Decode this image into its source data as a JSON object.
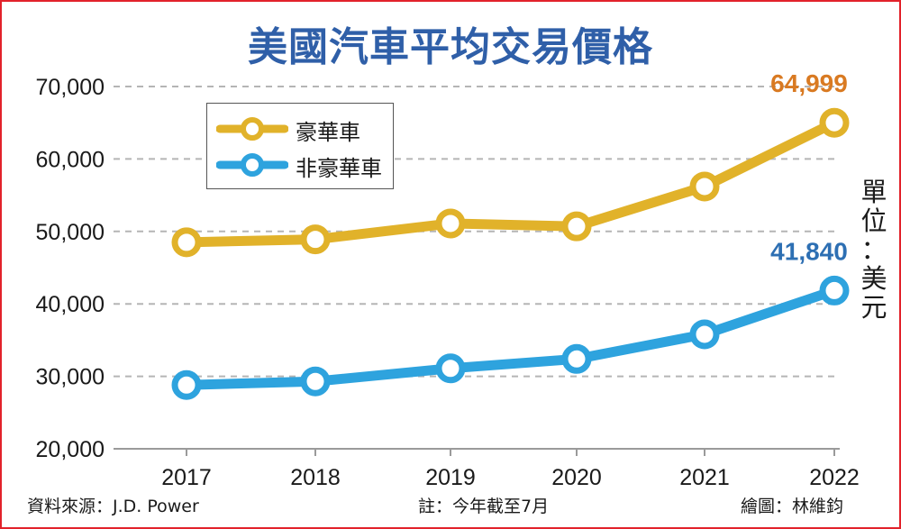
{
  "title": "美國汽車平均交易價格",
  "unit": "單位：美元",
  "source": "資料來源：J.D. Power",
  "note": "註：今年截至7月",
  "credit": "繪圖：林維鈞",
  "colors": {
    "luxury": "#e1b22a",
    "non_luxury": "#2ea3de",
    "luxury_label": "#d97a22",
    "non_luxury_label": "#2d6fb3",
    "title": "#2f5fa8",
    "frame": "#e2222b"
  },
  "chart_data": {
    "type": "line",
    "title": "美國汽車平均交易價格",
    "x": [
      "2017",
      "2018",
      "2019",
      "2020",
      "2021",
      "2022"
    ],
    "ylim": [
      20000,
      70000
    ],
    "yticks": [
      "20,000",
      "30,000",
      "40,000",
      "50,000",
      "60,000",
      "70,000"
    ],
    "ytick_values": [
      20000,
      30000,
      40000,
      50000,
      60000,
      70000
    ],
    "grid": true,
    "legend": "top-left",
    "series": [
      {
        "name": "豪華車",
        "color": "#e1b22a",
        "values": [
          48500,
          48900,
          51100,
          50700,
          56200,
          64999
        ]
      },
      {
        "name": "非豪華車",
        "color": "#2ea3de",
        "values": [
          28800,
          29300,
          31100,
          32400,
          35800,
          41840
        ]
      }
    ],
    "annotations": [
      {
        "series": "豪華車",
        "x": "2022",
        "text": "64,999"
      },
      {
        "series": "非豪華車",
        "x": "2022",
        "text": "41,840"
      }
    ]
  }
}
